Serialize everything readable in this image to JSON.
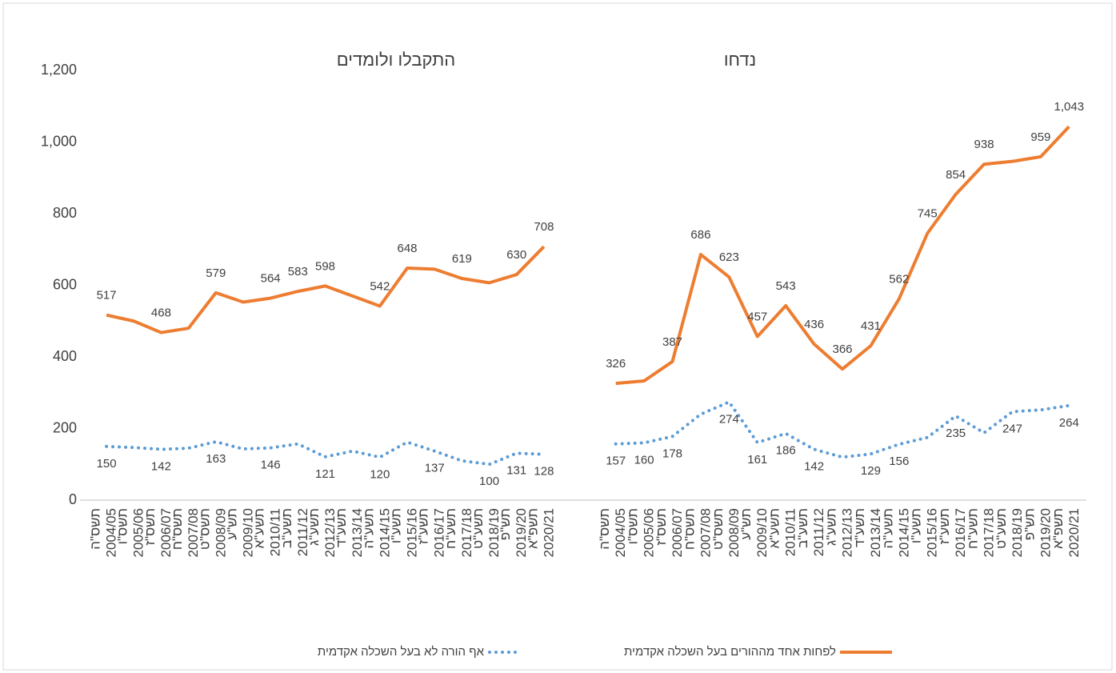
{
  "chart_data": {
    "type": "line",
    "panels": [
      {
        "title": "התקבלו ולומדים"
      },
      {
        "title": "נדחו"
      }
    ],
    "categories": [
      [
        "2004/05",
        "תשס\"ה"
      ],
      [
        "2005/06",
        "תשס\"ו"
      ],
      [
        "2006/07",
        "תשס\"ז"
      ],
      [
        "2007/08",
        "תשס\"ח"
      ],
      [
        "2008/09",
        "תשס\"ט"
      ],
      [
        "2009/10",
        "תש\"ע"
      ],
      [
        "2010/11",
        "תשע\"א"
      ],
      [
        "2011/12",
        "תשע\"ב"
      ],
      [
        "2012/13",
        "תשע\"ג"
      ],
      [
        "2013/14",
        "תשע\"ד"
      ],
      [
        "2014/15",
        "תשע\"ה"
      ],
      [
        "2015/16",
        "תשע\"ו"
      ],
      [
        "2016/17",
        "תשע\"ז"
      ],
      [
        "2017/18",
        "תשע\"ח"
      ],
      [
        "2018/19",
        "תשע\"ט"
      ],
      [
        "2019/20",
        "תש\"פ"
      ],
      [
        "2020/21",
        "תשפ\"א"
      ]
    ],
    "series": [
      {
        "name": "אף הורה לא בעל השכלה אקדמית",
        "color": "#5b9bd5",
        "dotted": true,
        "panels": [
          {
            "values": [
              150,
              147,
              142,
              145,
              163,
              143,
              146,
              157,
              121,
              137,
              120,
              162,
              137,
              110,
              100,
              131,
              128
            ],
            "value_labels": [
              "150",
              null,
              "142",
              null,
              "163",
              null,
              "146",
              null,
              "121",
              null,
              "120",
              null,
              "137",
              null,
              "100",
              "131",
              "128"
            ]
          },
          {
            "values": [
              157,
              160,
              178,
              240,
              274,
              161,
              186,
              142,
              120,
              129,
              156,
              175,
              235,
              188,
              247,
              252,
              264
            ],
            "value_labels": [
              "157",
              "160",
              "178",
              null,
              "274",
              "161",
              "186",
              "142",
              null,
              "129",
              "156",
              null,
              "235",
              null,
              "247",
              null,
              "264"
            ]
          }
        ]
      },
      {
        "name": "לפחות אחד מההורים בעל השכלה אקדמית",
        "color": "#ed7d31",
        "dotted": false,
        "panels": [
          {
            "values": [
              517,
              500,
              468,
              480,
              579,
              553,
              564,
              583,
              598,
              570,
              542,
              648,
              645,
              619,
              607,
              630,
              708
            ],
            "value_labels": [
              "517",
              null,
              "468",
              null,
              "579",
              null,
              "564",
              "583",
              "598",
              null,
              "542",
              "648",
              null,
              "619",
              null,
              "630",
              "708"
            ]
          },
          {
            "values": [
              326,
              333,
              387,
              686,
              623,
              457,
              543,
              436,
              366,
              431,
              562,
              745,
              854,
              938,
              946,
              959,
              1043
            ],
            "value_labels": [
              "326",
              null,
              "387",
              "686",
              "623",
              "457",
              "543",
              "436",
              "366",
              "431",
              "562",
              "745",
              "854",
              "938",
              null,
              "959",
              "1,043"
            ]
          }
        ]
      }
    ],
    "ylim": [
      0,
      1200
    ],
    "yticks": [
      0,
      200,
      400,
      600,
      800,
      {
        "value": 1000,
        "label": "1,000"
      },
      {
        "value": 1200,
        "label": "1,200"
      }
    ],
    "grid": false
  }
}
